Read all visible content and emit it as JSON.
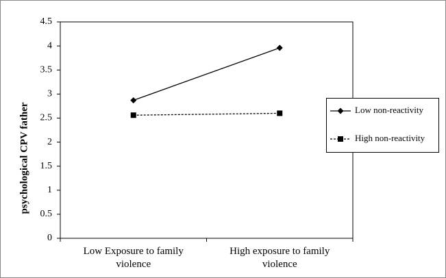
{
  "chart_data": {
    "type": "line",
    "y_label": "psychological CPV father",
    "categories": [
      "Low  Exposure to family violence",
      "High exposure to family violence"
    ],
    "series": [
      {
        "name": "Low non-reactivity",
        "color": "#000000",
        "dash": false,
        "marker": "diamond",
        "values": [
          2.87,
          3.96
        ]
      },
      {
        "name": "High non-reactivity",
        "color": "#000000",
        "dash": true,
        "marker": "square",
        "values": [
          2.56,
          2.6
        ]
      }
    ],
    "ylim": [
      0,
      4.5
    ],
    "yticks": [
      0,
      0.5,
      1,
      1.5,
      2,
      2.5,
      3,
      3.5,
      4,
      4.5
    ],
    "grid": false,
    "legend": "right"
  }
}
